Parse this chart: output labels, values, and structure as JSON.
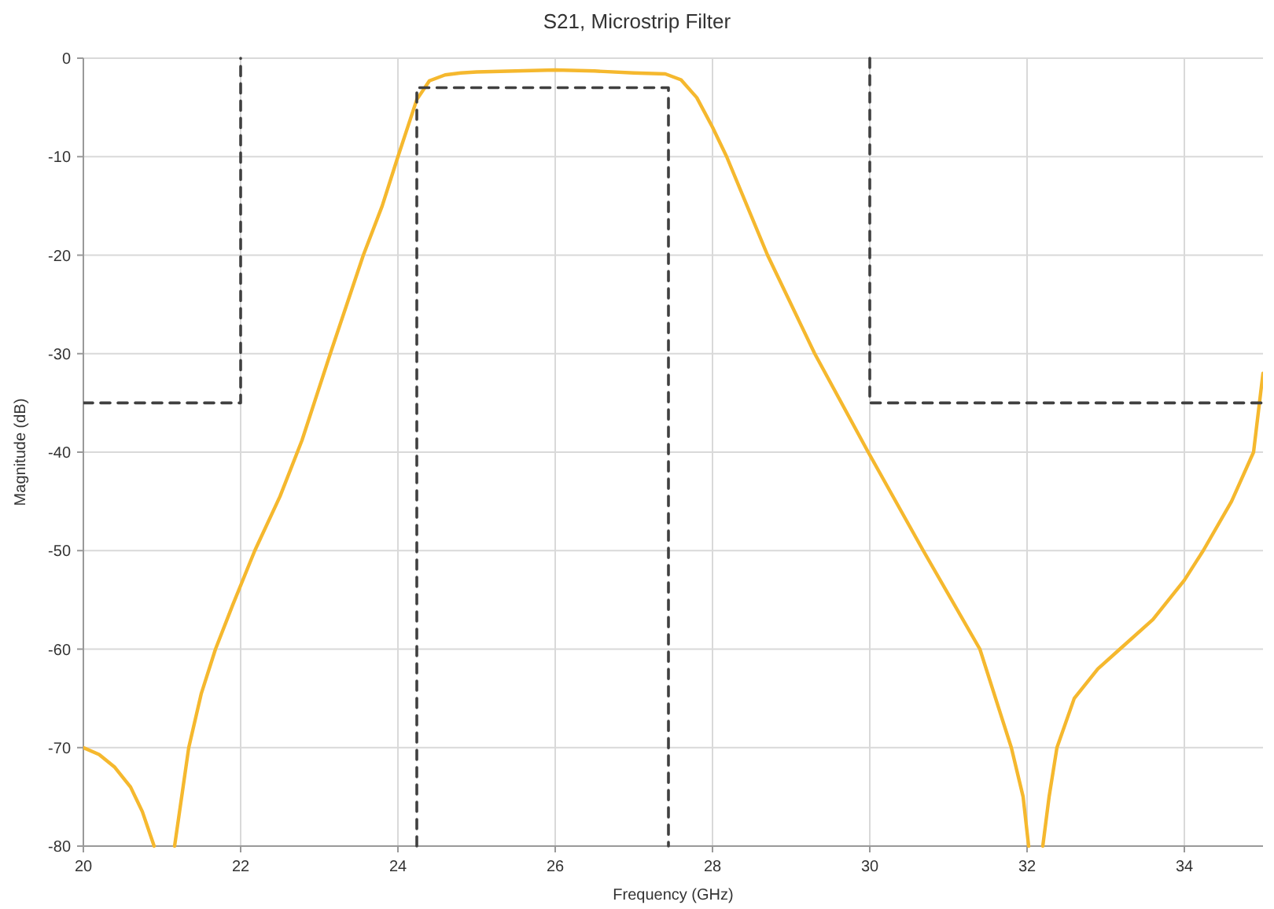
{
  "chart_data": {
    "type": "line",
    "title": "S21, Microstrip Filter",
    "xlabel": "Frequency (GHz)",
    "ylabel": "Magnitude (dB)",
    "xlim": [
      20,
      35
    ],
    "xticks": [
      20,
      22,
      24,
      26,
      28,
      30,
      32,
      34
    ],
    "ylim": [
      -80,
      0
    ],
    "yticks": [
      -80,
      -70,
      -60,
      -50,
      -40,
      -30,
      -20,
      -10,
      0
    ],
    "grid": true,
    "series": [
      {
        "color": "#f5b82e",
        "line_style": "solid",
        "x": [
          20,
          20.2,
          20.4,
          20.6,
          20.75,
          20.9,
          21.0,
          21.16,
          21.25,
          21.34,
          21.5,
          21.68,
          21.9,
          22.18,
          22.5,
          22.78,
          23.14,
          23.56,
          23.8,
          24.0,
          24.24,
          24.4,
          24.6,
          24.8,
          25,
          25.5,
          26,
          26.5,
          27,
          27.4,
          27.6,
          27.8,
          28.0,
          28.18,
          28.7,
          29.3,
          29.98,
          30.68,
          31.4,
          31.8,
          31.95,
          32.02,
          32.1,
          32.2,
          32.28,
          32.38,
          32.6,
          32.9,
          33.18,
          33.6,
          34.0,
          34.24,
          34.6,
          34.88,
          35
        ],
        "values": [
          -70,
          -70.7,
          -72,
          -74,
          -76.5,
          -80,
          null,
          -80,
          -75,
          -70,
          -64.5,
          -60,
          -55.5,
          -50,
          -44.5,
          -38.8,
          -30,
          -20,
          -15,
          -10,
          -4.2,
          -2.3,
          -1.7,
          -1.5,
          -1.4,
          -1.3,
          -1.2,
          -1.3,
          -1.5,
          -1.6,
          -2.2,
          -4,
          -7,
          -10,
          -20,
          -30,
          -40,
          -50,
          -60,
          -70,
          -75,
          -80,
          null,
          -80,
          -75,
          -70,
          -65,
          -62,
          -60,
          -57,
          -53,
          -50,
          -45,
          -40,
          -32
        ]
      },
      {
        "color": "#404040",
        "line_style": "dashed",
        "x": [
          20,
          22,
          22
        ],
        "values": [
          -35,
          -35,
          0
        ]
      },
      {
        "color": "#404040",
        "line_style": "dashed",
        "x": [
          24.24,
          24.24,
          27.44,
          27.44
        ],
        "values": [
          -80,
          -3,
          -3,
          -80
        ]
      },
      {
        "color": "#404040",
        "line_style": "dashed",
        "x": [
          30,
          30,
          35
        ],
        "values": [
          0,
          -35,
          -35
        ]
      }
    ]
  }
}
